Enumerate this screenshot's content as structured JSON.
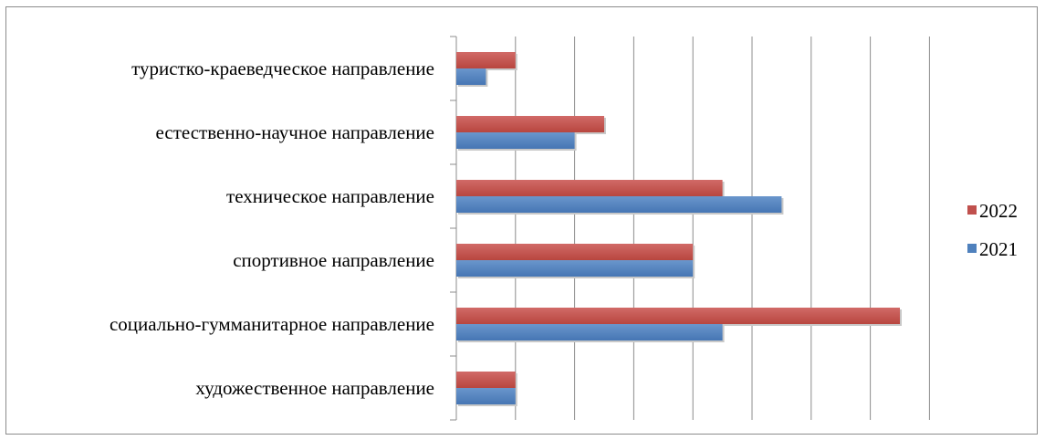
{
  "chart_data": {
    "type": "bar",
    "orientation": "horizontal",
    "categories": [
      "туристко-краеведческое направление",
      "естественно-научное направление",
      "техническое направление",
      "спортивное направление",
      "социально-гумманитарное направление",
      "художественное направление"
    ],
    "series": [
      {
        "name": "2022",
        "color": "#c0504d",
        "values": [
          1,
          2.5,
          4.5,
          4,
          7.5,
          1
        ]
      },
      {
        "name": "2021",
        "color": "#4f81bd",
        "values": [
          0.5,
          2,
          5.5,
          4,
          4.5,
          1
        ]
      }
    ],
    "xlim": [
      0,
      8
    ],
    "grid": true,
    "legend_position": "right",
    "title": "",
    "xlabel": "",
    "ylabel": ""
  }
}
